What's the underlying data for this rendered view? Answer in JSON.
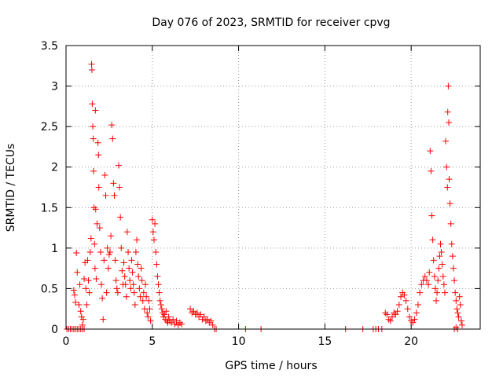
{
  "chart_data": {
    "type": "scatter",
    "title": "Day 076 of 2023, SRMTID for receiver cpvg",
    "xlabel": "GPS time / hours",
    "ylabel": "SRMTID / TECUs",
    "xlim": [
      0,
      24
    ],
    "ylim": [
      0,
      3.5
    ],
    "xticks": [
      0,
      5,
      10,
      15,
      20
    ],
    "yticks": [
      0,
      0.5,
      1,
      1.5,
      2,
      2.5,
      3,
      3.5
    ],
    "xtick_labels": [
      "0",
      "5",
      "10",
      "15",
      "20"
    ],
    "ytick_labels": [
      "0",
      "0.5",
      "1",
      "1.5",
      "2",
      "2.5",
      "3",
      "3.5"
    ],
    "grid": true,
    "marker": "+",
    "series": [
      {
        "name": "SRMTID",
        "color": "#ff0000",
        "points": [
          [
            0.05,
            0.0
          ],
          [
            0.15,
            0.0
          ],
          [
            0.25,
            0.0
          ],
          [
            0.35,
            0.0
          ],
          [
            0.45,
            0.0
          ],
          [
            0.55,
            0.0
          ],
          [
            0.65,
            0.0
          ],
          [
            0.75,
            0.0
          ],
          [
            0.85,
            0.0
          ],
          [
            0.95,
            0.0
          ],
          [
            1.05,
            0.0
          ],
          [
            0.45,
            0.48
          ],
          [
            0.5,
            0.42
          ],
          [
            0.55,
            0.33
          ],
          [
            0.6,
            0.94
          ],
          [
            0.65,
            0.7
          ],
          [
            0.75,
            0.3
          ],
          [
            0.8,
            0.55
          ],
          [
            0.85,
            0.22
          ],
          [
            0.9,
            0.15
          ],
          [
            0.95,
            0.05
          ],
          [
            1.0,
            0.12
          ],
          [
            1.05,
            0.62
          ],
          [
            1.1,
            0.82
          ],
          [
            1.15,
            0.5
          ],
          [
            1.2,
            0.3
          ],
          [
            1.25,
            0.85
          ],
          [
            1.3,
            0.6
          ],
          [
            1.35,
            0.45
          ],
          [
            1.4,
            0.95
          ],
          [
            1.45,
            1.12
          ],
          [
            1.48,
            3.27
          ],
          [
            1.5,
            3.2
          ],
          [
            1.52,
            2.78
          ],
          [
            1.55,
            2.5
          ],
          [
            1.58,
            2.35
          ],
          [
            1.6,
            1.95
          ],
          [
            1.62,
            1.5
          ],
          [
            1.65,
            1.05
          ],
          [
            1.68,
            0.75
          ],
          [
            1.7,
            2.7
          ],
          [
            1.72,
            1.48
          ],
          [
            1.75,
            0.62
          ],
          [
            1.8,
            1.3
          ],
          [
            1.85,
            2.3
          ],
          [
            1.88,
            2.15
          ],
          [
            1.9,
            1.75
          ],
          [
            1.95,
            1.25
          ],
          [
            2.0,
            0.95
          ],
          [
            2.05,
            0.55
          ],
          [
            2.1,
            0.38
          ],
          [
            2.15,
            0.12
          ],
          [
            2.2,
            0.85
          ],
          [
            2.25,
            1.9
          ],
          [
            2.3,
            1.65
          ],
          [
            2.35,
            0.45
          ],
          [
            2.4,
            1.0
          ],
          [
            2.45,
            0.75
          ],
          [
            2.5,
            0.92
          ],
          [
            2.55,
            0.95
          ],
          [
            2.6,
            1.15
          ],
          [
            2.65,
            2.52
          ],
          [
            2.7,
            2.35
          ],
          [
            2.75,
            1.8
          ],
          [
            2.8,
            1.65
          ],
          [
            2.85,
            0.85
          ],
          [
            2.9,
            0.6
          ],
          [
            2.95,
            0.5
          ],
          [
            3.0,
            0.45
          ],
          [
            3.05,
            2.02
          ],
          [
            3.1,
            1.75
          ],
          [
            3.15,
            1.38
          ],
          [
            3.2,
            1.0
          ],
          [
            3.25,
            0.72
          ],
          [
            3.3,
            0.55
          ],
          [
            3.35,
            0.82
          ],
          [
            3.4,
            0.65
          ],
          [
            3.45,
            0.55
          ],
          [
            3.5,
            0.4
          ],
          [
            3.55,
            1.2
          ],
          [
            3.6,
            0.95
          ],
          [
            3.65,
            0.75
          ],
          [
            3.7,
            0.6
          ],
          [
            3.75,
            0.5
          ],
          [
            3.8,
            0.85
          ],
          [
            3.85,
            0.7
          ],
          [
            3.9,
            0.55
          ],
          [
            3.95,
            0.45
          ],
          [
            4.0,
            0.3
          ],
          [
            4.05,
            0.95
          ],
          [
            4.1,
            1.1
          ],
          [
            4.15,
            0.8
          ],
          [
            4.2,
            0.65
          ],
          [
            4.25,
            0.5
          ],
          [
            4.3,
            0.4
          ],
          [
            4.35,
            0.75
          ],
          [
            4.4,
            0.6
          ],
          [
            4.45,
            0.35
          ],
          [
            4.5,
            0.45
          ],
          [
            4.55,
            0.25
          ],
          [
            4.6,
            0.55
          ],
          [
            4.65,
            0.4
          ],
          [
            4.7,
            0.2
          ],
          [
            4.75,
            0.15
          ],
          [
            4.8,
            0.35
          ],
          [
            4.85,
            0.25
          ],
          [
            4.9,
            0.1
          ],
          [
            5.0,
            1.35
          ],
          [
            5.05,
            1.2
          ],
          [
            5.1,
            1.1
          ],
          [
            5.15,
            1.3
          ],
          [
            5.2,
            0.95
          ],
          [
            5.25,
            0.8
          ],
          [
            5.3,
            0.65
          ],
          [
            5.35,
            0.55
          ],
          [
            5.4,
            0.45
          ],
          [
            5.45,
            0.35
          ],
          [
            5.5,
            0.3
          ],
          [
            5.55,
            0.25
          ],
          [
            5.6,
            0.2
          ],
          [
            5.65,
            0.15
          ],
          [
            5.7,
            0.18
          ],
          [
            5.75,
            0.12
          ],
          [
            5.8,
            0.22
          ],
          [
            5.85,
            0.1
          ],
          [
            5.9,
            0.08
          ],
          [
            5.95,
            0.15
          ],
          [
            6.0,
            0.1
          ],
          [
            6.1,
            0.08
          ],
          [
            6.2,
            0.12
          ],
          [
            6.3,
            0.06
          ],
          [
            6.4,
            0.1
          ],
          [
            6.5,
            0.05
          ],
          [
            6.6,
            0.08
          ],
          [
            6.7,
            0.06
          ],
          [
            7.2,
            0.25
          ],
          [
            7.3,
            0.2
          ],
          [
            7.4,
            0.22
          ],
          [
            7.5,
            0.18
          ],
          [
            7.6,
            0.2
          ],
          [
            7.7,
            0.15
          ],
          [
            7.8,
            0.18
          ],
          [
            7.9,
            0.12
          ],
          [
            8.0,
            0.15
          ],
          [
            8.1,
            0.1
          ],
          [
            8.2,
            0.12
          ],
          [
            8.3,
            0.08
          ],
          [
            8.4,
            0.1
          ],
          [
            8.5,
            0.05
          ],
          [
            8.6,
            0.0
          ],
          [
            8.7,
            0.0
          ],
          [
            10.4,
            0.0
          ],
          [
            11.3,
            0.0
          ],
          [
            16.2,
            0.0
          ],
          [
            17.2,
            0.0
          ],
          [
            17.8,
            0.0
          ],
          [
            17.95,
            0.0
          ],
          [
            18.1,
            0.0
          ],
          [
            18.3,
            0.0
          ],
          [
            18.5,
            0.2
          ],
          [
            18.6,
            0.18
          ],
          [
            18.7,
            0.12
          ],
          [
            18.8,
            0.1
          ],
          [
            18.9,
            0.15
          ],
          [
            19.0,
            0.2
          ],
          [
            19.1,
            0.18
          ],
          [
            19.2,
            0.22
          ],
          [
            19.3,
            0.3
          ],
          [
            19.4,
            0.4
          ],
          [
            19.5,
            0.45
          ],
          [
            19.6,
            0.42
          ],
          [
            19.7,
            0.35
          ],
          [
            19.8,
            0.25
          ],
          [
            19.9,
            0.15
          ],
          [
            20.0,
            0.1
          ],
          [
            20.1,
            0.08
          ],
          [
            20.2,
            0.12
          ],
          [
            20.3,
            0.2
          ],
          [
            20.4,
            0.3
          ],
          [
            20.5,
            0.45
          ],
          [
            20.6,
            0.55
          ],
          [
            20.7,
            0.6
          ],
          [
            20.8,
            0.65
          ],
          [
            20.9,
            0.6
          ],
          [
            21.0,
            0.55
          ],
          [
            21.05,
            0.7
          ],
          [
            21.1,
            2.2
          ],
          [
            21.15,
            1.95
          ],
          [
            21.2,
            1.4
          ],
          [
            21.25,
            1.1
          ],
          [
            21.3,
            0.85
          ],
          [
            21.35,
            0.65
          ],
          [
            21.4,
            0.5
          ],
          [
            21.45,
            0.35
          ],
          [
            21.5,
            0.45
          ],
          [
            21.55,
            0.6
          ],
          [
            21.6,
            0.75
          ],
          [
            21.65,
            0.9
          ],
          [
            21.7,
            1.05
          ],
          [
            21.75,
            0.95
          ],
          [
            21.8,
            0.8
          ],
          [
            21.85,
            0.65
          ],
          [
            21.9,
            0.55
          ],
          [
            21.95,
            0.45
          ],
          [
            22.0,
            2.32
          ],
          [
            22.05,
            2.0
          ],
          [
            22.1,
            1.75
          ],
          [
            22.12,
            2.68
          ],
          [
            22.15,
            3.0
          ],
          [
            22.18,
            2.55
          ],
          [
            22.2,
            1.85
          ],
          [
            22.25,
            1.55
          ],
          [
            22.3,
            1.3
          ],
          [
            22.35,
            1.05
          ],
          [
            22.4,
            0.9
          ],
          [
            22.45,
            0.75
          ],
          [
            22.5,
            0.6
          ],
          [
            22.55,
            0.45
          ],
          [
            22.6,
            0.35
          ],
          [
            22.65,
            0.25
          ],
          [
            22.7,
            0.2
          ],
          [
            22.75,
            0.15
          ],
          [
            22.8,
            0.4
          ],
          [
            22.85,
            0.3
          ],
          [
            22.9,
            0.1
          ],
          [
            22.95,
            0.05
          ],
          [
            22.5,
            0.0
          ],
          [
            22.6,
            0.02
          ],
          [
            22.7,
            0.0
          ]
        ]
      }
    ]
  }
}
